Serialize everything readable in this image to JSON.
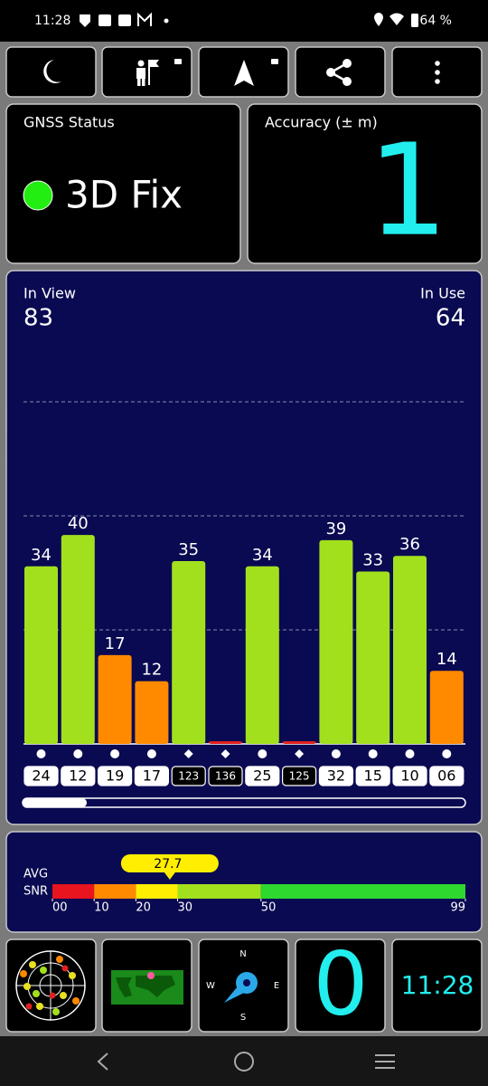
{
  "status_bar": {
    "time": "11:28",
    "battery": "64 %"
  },
  "gnss_status": {
    "label": "GNSS Status",
    "value": "3D Fix"
  },
  "accuracy": {
    "label": "Accuracy (± m)",
    "value": "1"
  },
  "chart_data": {
    "type": "bar",
    "in_view_label": "In View",
    "in_view": "83",
    "in_use_label": "In Use",
    "in_use": "64",
    "categories": [
      "24",
      "12",
      "19",
      "17",
      "123",
      "136",
      "25",
      "125",
      "32",
      "15",
      "10",
      "06"
    ],
    "values": [
      34,
      40,
      17,
      12,
      35,
      0,
      34,
      0,
      39,
      33,
      36,
      14
    ],
    "value_labels": [
      "34",
      "40",
      "17",
      "12",
      "35",
      null,
      "34",
      null,
      "39",
      "33",
      "36",
      "14"
    ],
    "colors": [
      "#a2e01e",
      "#a2e01e",
      "#ff8a00",
      "#ff8a00",
      "#a2e01e",
      "#e0201e",
      "#a2e01e",
      "#e0201e",
      "#a2e01e",
      "#a2e01e",
      "#a2e01e",
      "#ff8a00"
    ],
    "markers": [
      "circle",
      "circle",
      "circle",
      "circle",
      "diamond",
      "diamond",
      "circle",
      "diamond",
      "circle",
      "circle",
      "circle",
      "circle"
    ],
    "ylim": [
      0,
      70
    ]
  },
  "snr": {
    "label_1": "AVG",
    "label_2": "SNR",
    "average": 27.7,
    "average_label": "27.7",
    "xlim": [
      0,
      99
    ],
    "xticks": [
      {
        "value": 0,
        "label": "00"
      },
      10,
      20,
      30,
      50,
      99
    ],
    "bands": [
      {
        "from": 0,
        "to": 10,
        "color": "#e8141e"
      },
      {
        "from": 10,
        "to": 20,
        "color": "#ff8a00"
      },
      {
        "from": 20,
        "to": 30,
        "color": "#ffee00"
      },
      {
        "from": 30,
        "to": 50,
        "color": "#a2e01e"
      },
      {
        "from": 50,
        "to": 99,
        "color": "#2ed82e"
      }
    ]
  },
  "tiles": {
    "compass_n": "N",
    "compass_e": "E",
    "compass_s": "S",
    "compass_w": "W",
    "count": "0",
    "clock": "11:28"
  }
}
